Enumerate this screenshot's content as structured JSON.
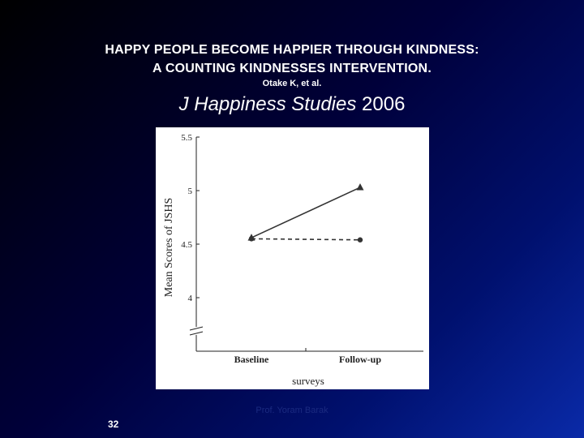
{
  "slide": {
    "title_line1_main": "HAPPY PEOPLE BECOME HAPPIER THROUGH KINDNESS",
    "title_line1_end": ":",
    "title_line2_main": "A COUNTING KINDNESSES INTERVENTION",
    "title_line2_end": ".",
    "authors": "Otake K, et al.",
    "journal_name": "J Happiness Studies",
    "journal_year": " 2006",
    "footer": "Prof. Yoram Barak",
    "page_number": "32"
  },
  "chart_data": {
    "type": "line",
    "categories": [
      "Baseline",
      "Follow-up"
    ],
    "series": [
      {
        "values": [
          4.56,
          5.03
        ],
        "style": "solid",
        "marker": "triangle",
        "color": "#333333"
      },
      {
        "values": [
          4.55,
          4.54
        ],
        "style": "dashed",
        "marker": "circle",
        "color": "#333333"
      }
    ],
    "title": "",
    "xlabel": "surveys",
    "ylabel": "Mean Scores of JSHS",
    "ylim": [
      4,
      5.5
    ],
    "yticks": [
      "4",
      "4.5",
      "5",
      "5.5"
    ],
    "axis_break": true,
    "grid": false
  }
}
